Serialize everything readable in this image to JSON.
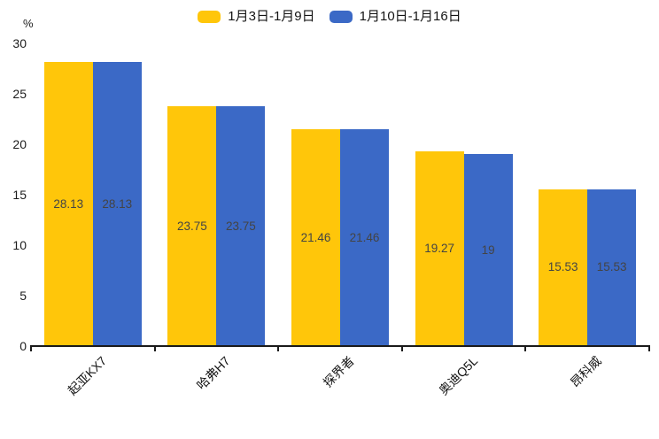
{
  "chart_data": {
    "type": "bar",
    "title": "",
    "categories": [
      "起亚KX7",
      "哈弗H7",
      "探界者",
      "奥迪Q5L",
      "昂科威"
    ],
    "series": [
      {
        "name": "1月3日-1月9日",
        "color": "#FFC60A",
        "values": [
          28.13,
          23.75,
          21.46,
          19.27,
          15.53
        ],
        "value_labels": [
          "28.13",
          "23.75",
          "21.46",
          "19.27",
          "15.53"
        ]
      },
      {
        "name": "1月10日-1月16日",
        "color": "#3B69C6",
        "values": [
          28.13,
          23.75,
          21.46,
          19,
          15.53
        ],
        "value_labels": [
          "28.13",
          "23.75",
          "21.46",
          "19",
          "15.53"
        ]
      }
    ],
    "xlabel": "",
    "ylabel": "%",
    "ylim": [
      0,
      30
    ],
    "y_ticks": [
      30,
      25,
      20,
      15,
      10,
      5,
      0
    ],
    "grid": false,
    "legend_position": "top",
    "bar_value_label_position": "inside-center",
    "value_label_color": "#444444",
    "axis_color": "#1a1a1a"
  },
  "legend": {
    "items": [
      {
        "label": "1月3日-1月9日",
        "color": "#FFC60A"
      },
      {
        "label": "1月10日-1月16日",
        "color": "#3B69C6"
      }
    ]
  },
  "axes": {
    "unit": "%",
    "y_tick_labels": [
      "30",
      "25",
      "20",
      "15",
      "10",
      "5",
      "0"
    ],
    "x_tick_labels": [
      "起亚KX7",
      "哈弗H7",
      "探界者",
      "奥迪Q5L",
      "昂科威"
    ]
  }
}
